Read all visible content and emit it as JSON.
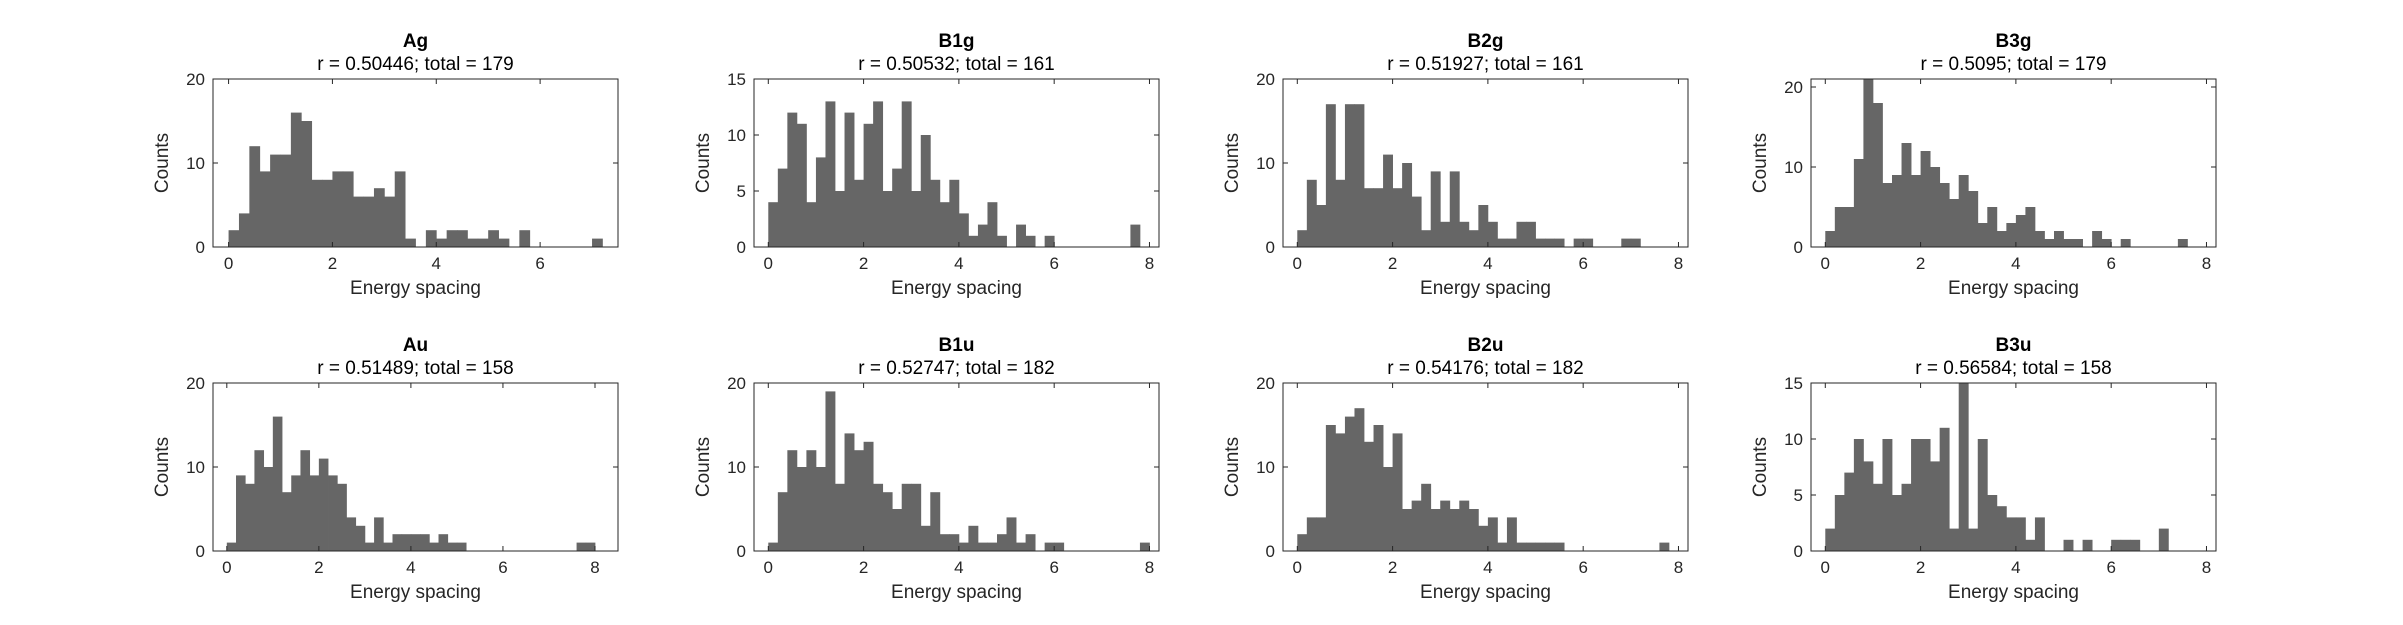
{
  "chart_data": [
    {
      "type": "bar",
      "title": "Ag",
      "subtitle": "r = 0.50446; total = 179",
      "xlabel": "Energy spacing",
      "ylabel": "Counts",
      "xlim": [
        -0.3,
        7.5
      ],
      "ylim": [
        0,
        20
      ],
      "xticks": [
        0,
        2,
        4,
        6
      ],
      "yticks": [
        0,
        10,
        20
      ],
      "bar_color": "#666666",
      "bin_start": 0,
      "bin_width": 0.2,
      "values": [
        2,
        4,
        12,
        9,
        11,
        11,
        16,
        15,
        8,
        8,
        9,
        9,
        6,
        6,
        7,
        6,
        9,
        1,
        0,
        2,
        1,
        2,
        2,
        1,
        1,
        2,
        1,
        0,
        2,
        0,
        0,
        0,
        0,
        0,
        0,
        1
      ]
    },
    {
      "type": "bar",
      "title": "B1g",
      "subtitle": "r = 0.50532; total = 161",
      "xlabel": "Energy spacing",
      "ylabel": "Counts",
      "xlim": [
        -0.3,
        8.2
      ],
      "ylim": [
        0,
        15
      ],
      "xticks": [
        0,
        2,
        4,
        6,
        8
      ],
      "yticks": [
        0,
        5,
        10,
        15
      ],
      "bar_color": "#666666",
      "bin_start": 0,
      "bin_width": 0.2,
      "values": [
        4,
        7,
        12,
        11,
        4,
        8,
        13,
        5,
        12,
        6,
        11,
        13,
        5,
        7,
        13,
        5,
        10,
        6,
        4,
        6,
        3,
        1,
        2,
        4,
        1,
        0,
        2,
        1,
        0,
        1,
        0,
        0,
        0,
        0,
        0,
        0,
        0,
        0,
        2
      ]
    },
    {
      "type": "bar",
      "title": "B2g",
      "subtitle": "r = 0.51927; total = 161",
      "xlabel": "Energy spacing",
      "ylabel": "Counts",
      "xlim": [
        -0.3,
        8.2
      ],
      "ylim": [
        0,
        20
      ],
      "xticks": [
        0,
        2,
        4,
        6,
        8
      ],
      "yticks": [
        0,
        10,
        20
      ],
      "bar_color": "#666666",
      "bin_start": 0,
      "bin_width": 0.2,
      "values": [
        2,
        8,
        5,
        17,
        8,
        17,
        17,
        7,
        7,
        11,
        7,
        10,
        6,
        2,
        9,
        3,
        9,
        3,
        2,
        5,
        3,
        1,
        1,
        3,
        3,
        1,
        1,
        1,
        0,
        1,
        1,
        0,
        0,
        0,
        1,
        1,
        0,
        0,
        0,
        0
      ]
    },
    {
      "type": "bar",
      "title": "B3g",
      "subtitle": "r = 0.5095; total = 179",
      "xlabel": "Energy spacing",
      "ylabel": "Counts",
      "xlim": [
        -0.3,
        8.2
      ],
      "ylim": [
        0,
        21
      ],
      "xticks": [
        0,
        2,
        4,
        6,
        8
      ],
      "yticks": [
        0,
        10,
        20
      ],
      "bar_color": "#666666",
      "bin_start": 0,
      "bin_width": 0.2,
      "values": [
        2,
        5,
        5,
        11,
        21,
        18,
        8,
        9,
        13,
        9,
        12,
        10,
        8,
        6,
        9,
        7,
        3,
        5,
        2,
        3,
        4,
        5,
        2,
        1,
        2,
        1,
        1,
        0,
        2,
        1,
        0,
        1,
        0,
        0,
        0,
        0,
        0,
        1
      ]
    },
    {
      "type": "bar",
      "title": "Au",
      "subtitle": "r = 0.51489; total = 158",
      "xlabel": "Energy spacing",
      "ylabel": "Counts",
      "xlim": [
        -0.3,
        8.5
      ],
      "ylim": [
        0,
        20
      ],
      "xticks": [
        0,
        2,
        4,
        6,
        8
      ],
      "yticks": [
        0,
        10,
        20
      ],
      "bar_color": "#666666",
      "bin_start": 0,
      "bin_width": 0.2,
      "values": [
        1,
        9,
        8,
        12,
        10,
        16,
        7,
        9,
        12,
        9,
        11,
        9,
        8,
        4,
        3,
        1,
        4,
        1,
        2,
        2,
        2,
        2,
        1,
        2,
        1,
        1,
        0,
        0,
        0,
        0,
        0,
        0,
        0,
        0,
        0,
        0,
        0,
        0,
        1,
        1
      ]
    },
    {
      "type": "bar",
      "title": "B1u",
      "subtitle": "r = 0.52747; total = 182",
      "xlabel": "Energy spacing",
      "ylabel": "Counts",
      "xlim": [
        -0.3,
        8.2
      ],
      "ylim": [
        0,
        20
      ],
      "xticks": [
        0,
        2,
        4,
        6,
        8
      ],
      "yticks": [
        0,
        10,
        20
      ],
      "bar_color": "#666666",
      "bin_start": 0,
      "bin_width": 0.2,
      "values": [
        1,
        7,
        12,
        10,
        12,
        10,
        19,
        8,
        14,
        12,
        13,
        8,
        7,
        5,
        8,
        8,
        3,
        7,
        2,
        2,
        1,
        3,
        1,
        1,
        2,
        4,
        1,
        2,
        0,
        1,
        1,
        0,
        0,
        0,
        0,
        0,
        0,
        0,
        0,
        1
      ]
    },
    {
      "type": "bar",
      "title": "B2u",
      "subtitle": "r = 0.54176; total = 182",
      "xlabel": "Energy spacing",
      "ylabel": "Counts",
      "xlim": [
        -0.3,
        8.2
      ],
      "ylim": [
        0,
        20
      ],
      "xticks": [
        0,
        2,
        4,
        6,
        8
      ],
      "yticks": [
        0,
        10,
        20
      ],
      "bar_color": "#666666",
      "bin_start": 0,
      "bin_width": 0.2,
      "values": [
        2,
        4,
        4,
        15,
        14,
        16,
        17,
        13,
        15,
        10,
        14,
        5,
        6,
        8,
        5,
        6,
        5,
        6,
        5,
        3,
        4,
        1,
        4,
        1,
        1,
        1,
        1,
        1,
        0,
        0,
        0,
        0,
        0,
        0,
        0,
        0,
        0,
        0,
        1,
        0
      ]
    },
    {
      "type": "bar",
      "title": "B3u",
      "subtitle": "r = 0.56584; total = 158",
      "xlabel": "Energy spacing",
      "ylabel": "Counts",
      "xlim": [
        -0.3,
        8.2
      ],
      "ylim": [
        0,
        15
      ],
      "xticks": [
        0,
        2,
        4,
        6,
        8
      ],
      "yticks": [
        0,
        5,
        10,
        15
      ],
      "bar_color": "#666666",
      "bin_start": 0,
      "bin_width": 0.2,
      "values": [
        2,
        5,
        7,
        10,
        8,
        6,
        10,
        5,
        6,
        10,
        10,
        8,
        11,
        2,
        15,
        2,
        10,
        5,
        4,
        3,
        3,
        1,
        3,
        0,
        0,
        1,
        0,
        1,
        0,
        0,
        1,
        1,
        1,
        0,
        0,
        2,
        0,
        0
      ]
    }
  ]
}
